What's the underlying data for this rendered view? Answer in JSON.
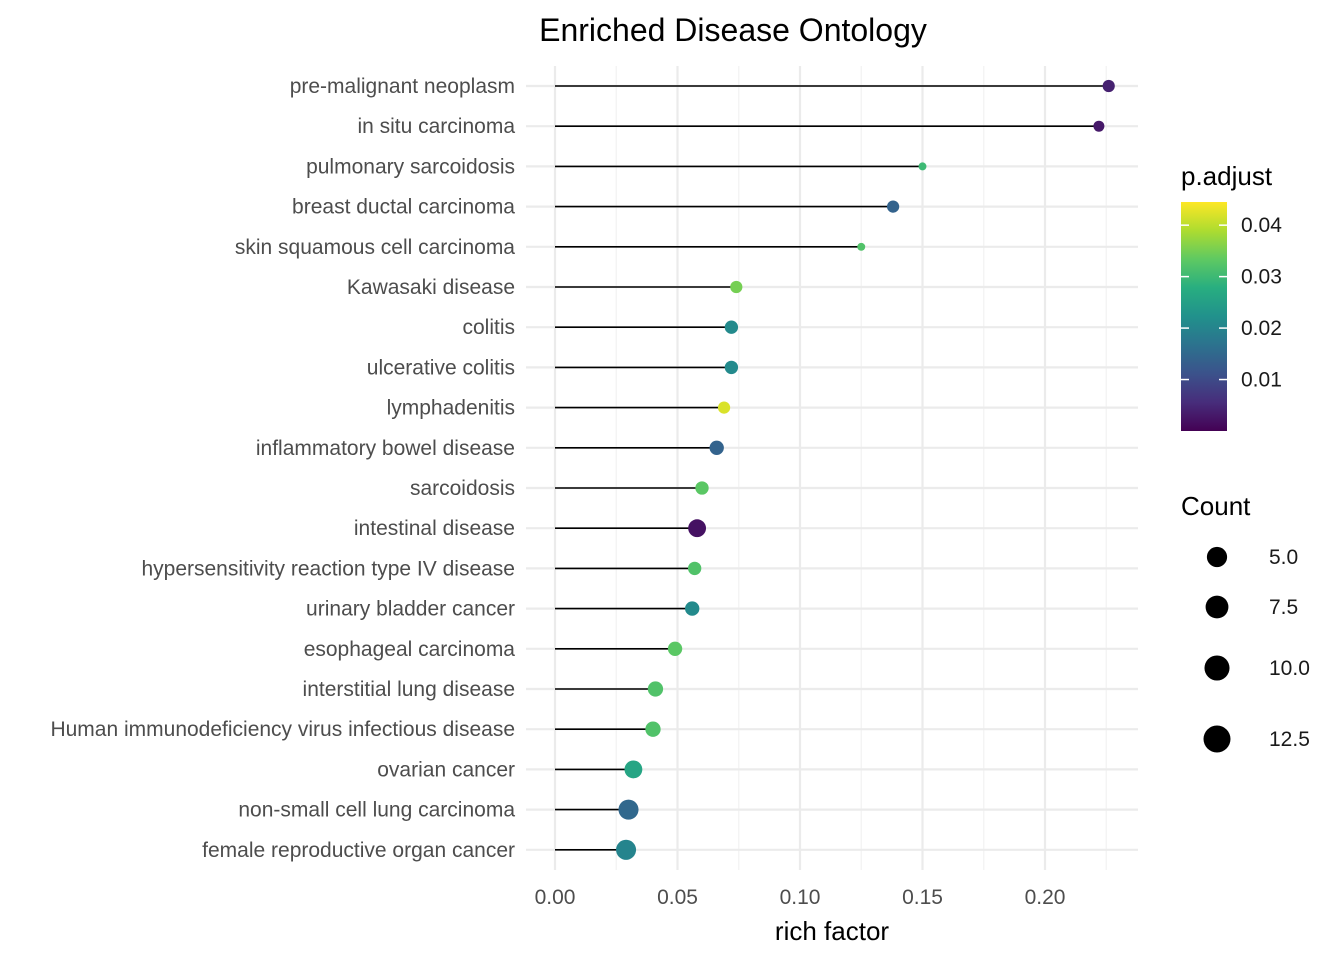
{
  "chart_data": {
    "type": "scatter",
    "subtype": "lollipop",
    "title": "Enriched Disease Ontology",
    "xlabel": "rich factor",
    "ylabel": "",
    "xlim": [
      -0.012,
      0.238
    ],
    "xticks": [
      "0.00",
      "0.05",
      "0.10",
      "0.15",
      "0.20"
    ],
    "xtick_values": [
      0.0,
      0.05,
      0.1,
      0.15,
      0.2
    ],
    "grid": true,
    "categories": [
      "pre-malignant neoplasm",
      "in situ carcinoma",
      "pulmonary sarcoidosis",
      "breast ductal carcinoma",
      "skin squamous cell carcinoma",
      "Kawasaki disease",
      "colitis",
      "ulcerative colitis",
      "lymphadenitis",
      "inflammatory bowel disease",
      "sarcoidosis",
      "intestinal disease",
      "hypersensitivity reaction type IV disease",
      "urinary bladder cancer",
      "esophageal carcinoma",
      "interstitial lung disease",
      "Human immunodeficiency virus infectious disease",
      "ovarian cancer",
      "non-small cell lung carcinoma",
      "female reproductive organ cancer"
    ],
    "rich_factor": [
      0.226,
      0.222,
      0.15,
      0.138,
      0.125,
      0.074,
      0.072,
      0.072,
      0.069,
      0.066,
      0.06,
      0.058,
      0.057,
      0.056,
      0.049,
      0.041,
      0.04,
      0.032,
      0.03,
      0.029
    ],
    "p_adjust": [
      0.004,
      0.003,
      0.03,
      0.014,
      0.032,
      0.035,
      0.021,
      0.021,
      0.042,
      0.014,
      0.033,
      0.002,
      0.032,
      0.021,
      0.033,
      0.032,
      0.032,
      0.026,
      0.015,
      0.02
    ],
    "count": [
      5,
      4,
      2,
      5,
      2,
      5,
      6,
      6,
      5,
      7,
      6,
      11,
      6,
      7,
      7,
      8,
      8,
      11,
      14,
      14
    ],
    "color_legend": {
      "title": "p.adjust",
      "scale": "viridis",
      "range": [
        0.0,
        0.0445
      ],
      "ticks": [
        "0.01",
        "0.02",
        "0.03",
        "0.04"
      ],
      "tick_values": [
        0.01,
        0.02,
        0.03,
        0.04
      ]
    },
    "size_legend": {
      "title": "Count",
      "labels": [
        "5.0",
        "7.5",
        "10.0",
        "12.5"
      ],
      "values": [
        5.0,
        7.5,
        10.0,
        12.5
      ]
    },
    "legend_position": "right"
  }
}
